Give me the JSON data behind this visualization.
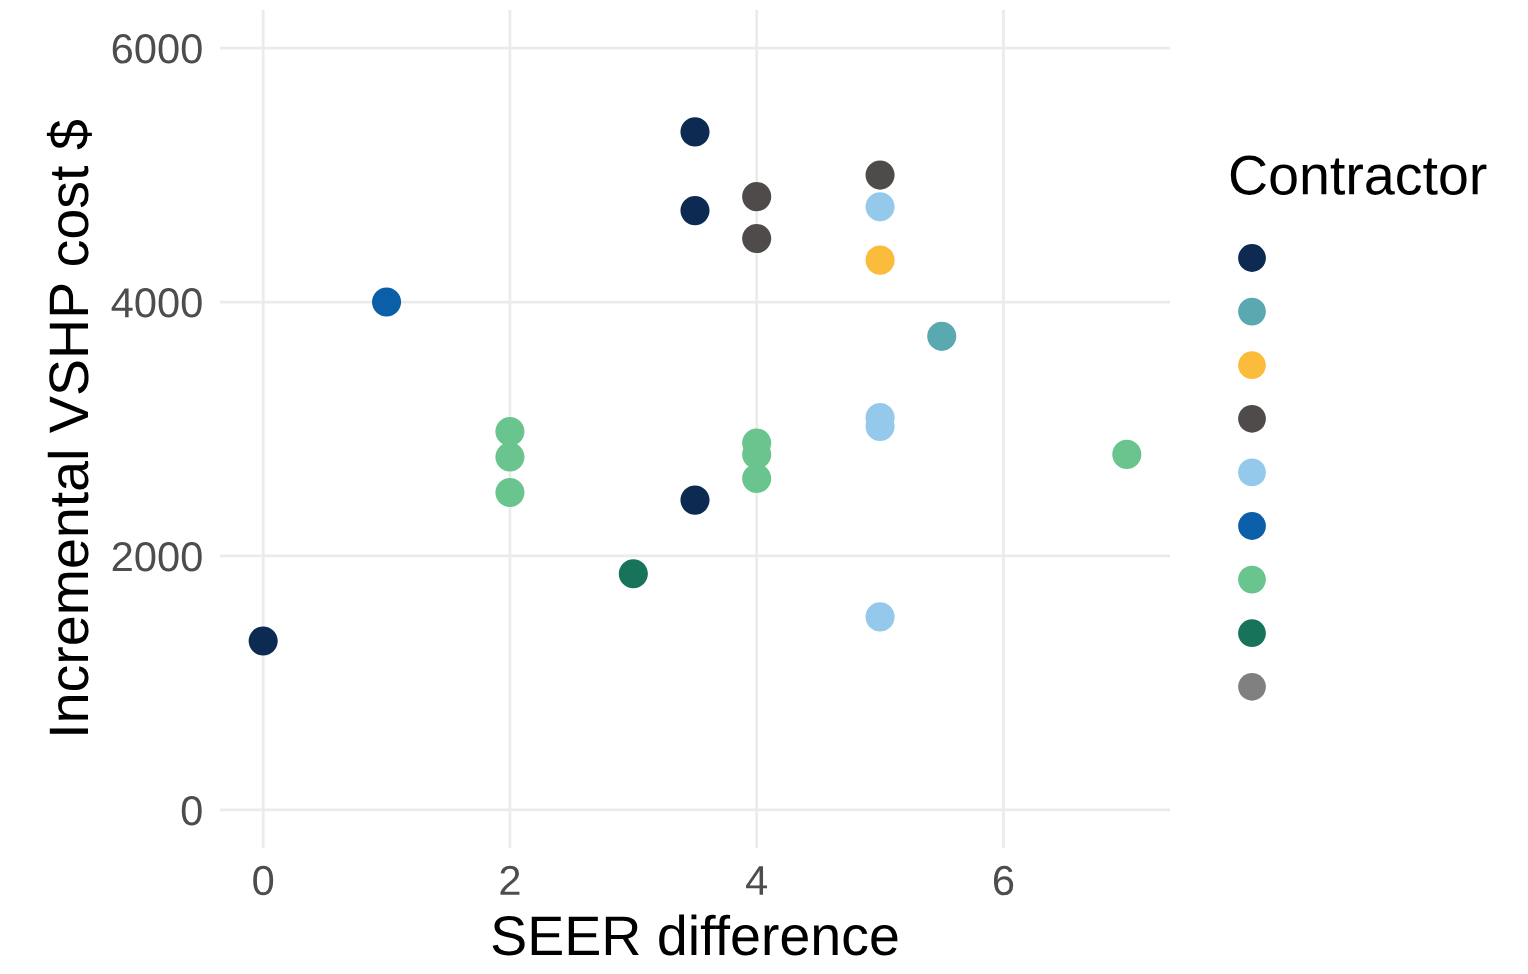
{
  "chart_data": {
    "type": "scatter",
    "xlabel": "SEER difference",
    "ylabel": "Incremental VSHP cost $",
    "legend_title": "Contractor",
    "xlim": [
      -0.35,
      7.35
    ],
    "ylim": [
      -300,
      6300
    ],
    "xticks": [
      0,
      2,
      4,
      6
    ],
    "yticks": [
      0,
      2000,
      4000,
      6000
    ],
    "grid": true,
    "marker": "circle",
    "series": [
      {
        "color": "#0d2b52",
        "x": [
          0,
          3.5,
          3.5,
          3.5
        ],
        "values": [
          1330,
          5340,
          4720,
          2440
        ]
      },
      {
        "color": "#5aa9b0",
        "x": [
          5.5
        ],
        "values": [
          3730
        ]
      },
      {
        "color": "#fbbc3b",
        "x": [
          5
        ],
        "values": [
          4330
        ]
      },
      {
        "color": "#4f4b4b",
        "x": [
          4,
          4,
          5
        ],
        "values": [
          4830,
          4500,
          5000
        ]
      },
      {
        "color": "#94c9eb",
        "x": [
          5,
          5,
          5,
          5
        ],
        "values": [
          4750,
          3090,
          3020,
          1520
        ]
      },
      {
        "color": "#0b5ea8",
        "x": [
          1
        ],
        "values": [
          4000
        ]
      },
      {
        "color": "#6ac48e",
        "x": [
          2,
          2,
          2,
          4,
          4,
          4,
          7
        ],
        "values": [
          2980,
          2780,
          2500,
          2890,
          2800,
          2610,
          2800
        ]
      },
      {
        "color": "#17735a",
        "x": [
          3
        ],
        "values": [
          1860
        ]
      },
      {
        "color": "#808080"
      }
    ]
  }
}
